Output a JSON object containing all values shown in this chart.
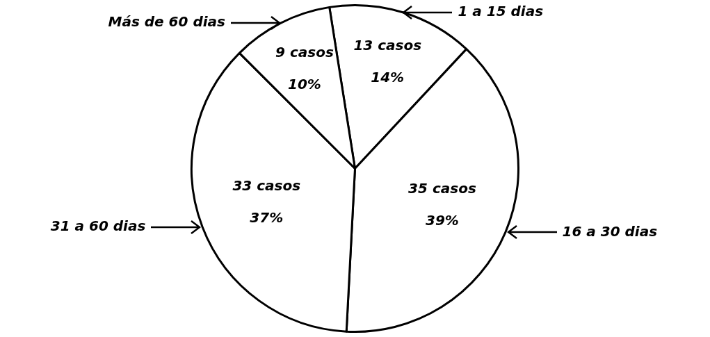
{
  "chart_data": {
    "type": "pie",
    "categories": [
      "1 a 15 dias",
      "16 a 30 dias",
      "31 a 60 dias",
      "Más de 60 dias"
    ],
    "values": [
      13,
      35,
      33,
      9
    ],
    "value_labels": [
      "13 casos\n14%",
      "35 casos\n39%",
      "33 casos\n37%",
      "9 casos\n10%"
    ],
    "colors": [
      "#ffffff",
      "#ffffff",
      "#ffffff",
      "#ffffff"
    ],
    "legend": false
  }
}
